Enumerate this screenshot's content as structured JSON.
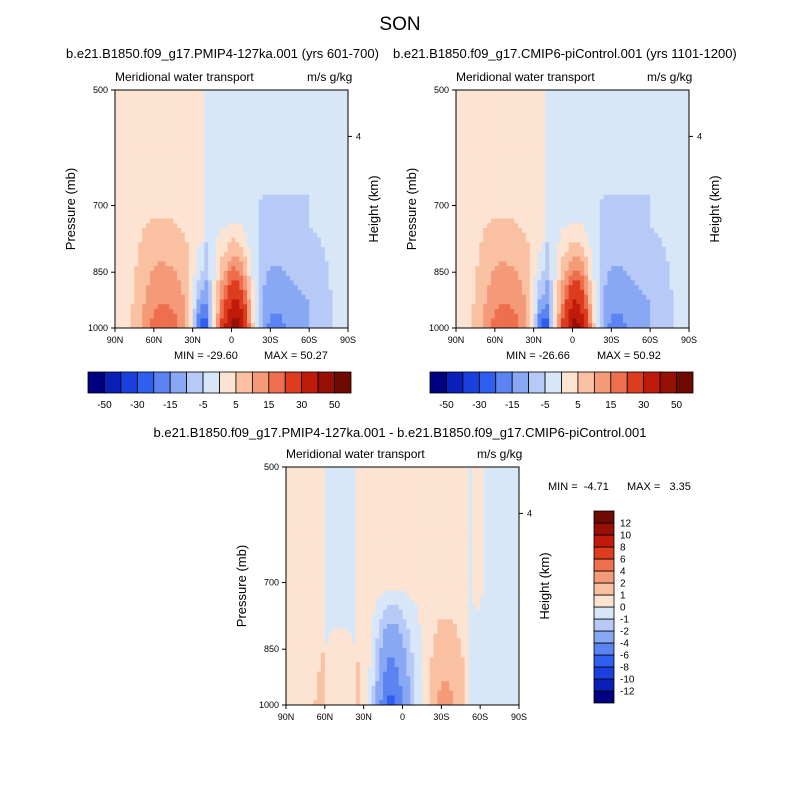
{
  "figure": {
    "season": "SON"
  },
  "chart_data": [
    {
      "type": "heatmap",
      "title": "b.e21.B1850.f09_g17.PMIP4-127ka.001 (yrs 601-700)",
      "left_label": "Meridional water transport",
      "right_label": "m/s g/kg",
      "ylabel": "Pressure (mb)",
      "ylabel_right": "Height (km)",
      "x_ticks": [
        "90N",
        "60N",
        "30N",
        "0",
        "30S",
        "60S",
        "90S"
      ],
      "y_ticks": [
        "500",
        "700",
        "850",
        "1000"
      ],
      "y_ticks_right": [
        "4"
      ],
      "xlim": [
        90,
        -90
      ],
      "ylim": [
        1000,
        500
      ],
      "min_label": "MIN = -29.60",
      "max_label": "MAX = 50.27",
      "stats": {
        "min": -29.6,
        "max": 50.27
      }
    },
    {
      "type": "heatmap",
      "title": "b.e21.B1850.f09_g17.CMIP6-piControl.001 (yrs 1101-1200)",
      "left_label": "Meridional water transport",
      "right_label": "m/s g/kg",
      "ylabel": "Pressure (mb)",
      "ylabel_right": "Height (km)",
      "x_ticks": [
        "90N",
        "60N",
        "30N",
        "0",
        "30S",
        "60S",
        "90S"
      ],
      "y_ticks": [
        "500",
        "700",
        "850",
        "1000"
      ],
      "y_ticks_right": [
        "4"
      ],
      "xlim": [
        90,
        -90
      ],
      "ylim": [
        1000,
        500
      ],
      "min_label": "MIN = -26.66",
      "max_label": "MAX = 50.92",
      "stats": {
        "min": -26.66,
        "max": 50.92
      }
    },
    {
      "type": "heatmap",
      "title": "b.e21.B1850.f09_g17.PMIP4-127ka.001 - b.e21.B1850.f09_g17.CMIP6-piControl.001",
      "left_label": "Meridional water transport",
      "right_label": "m/s g/kg",
      "ylabel": "Pressure (mb)",
      "ylabel_right": "Height (km)",
      "x_ticks": [
        "90N",
        "60N",
        "30N",
        "0",
        "30S",
        "60S",
        "90S"
      ],
      "y_ticks": [
        "500",
        "700",
        "850",
        "1000"
      ],
      "y_ticks_right": [
        "4"
      ],
      "xlim": [
        90,
        -90
      ],
      "ylim": [
        1000,
        500
      ],
      "min_label": "MIN =  -4.71",
      "max_label": "MAX =   3.35",
      "stats": {
        "min": -4.71,
        "max": 3.35
      }
    }
  ],
  "colorbars": {
    "main": {
      "orientation": "horizontal",
      "levels": [
        -50,
        -40,
        -30,
        -20,
        -15,
        -10,
        -5,
        0,
        5,
        10,
        15,
        20,
        30,
        40,
        50
      ],
      "labels": [
        "-50",
        "-30",
        "-15",
        "-5",
        "5",
        "15",
        "30",
        "50"
      ],
      "colors": [
        "#000080",
        "#0a1fb8",
        "#1a40e0",
        "#2f5fef",
        "#5b84f2",
        "#89a8f4",
        "#b6c9f7",
        "#d8e7f7",
        "#fde3d2",
        "#f9c0a2",
        "#f59a78",
        "#ee6f4d",
        "#dd3c1f",
        "#c01a0a",
        "#961006",
        "#6e0a00"
      ]
    },
    "diff": {
      "orientation": "vertical",
      "levels": [
        -12,
        -10,
        -8,
        -6,
        -4,
        -2,
        -1,
        0,
        1,
        2,
        4,
        6,
        8,
        10,
        12
      ],
      "labels": [
        "-12",
        "-10",
        "-8",
        "-6",
        "-4",
        "-2",
        "-1",
        "0",
        "1",
        "2",
        "4",
        "6",
        "8",
        "10",
        "12"
      ],
      "colors": [
        "#000080",
        "#0a1fb8",
        "#1a40e0",
        "#2f5fef",
        "#5b84f2",
        "#89a8f4",
        "#b6c9f7",
        "#d8e7f7",
        "#fde3d2",
        "#f9c0a2",
        "#f59a78",
        "#ee6f4d",
        "#dd3c1f",
        "#c01a0a",
        "#961006",
        "#6e0a00"
      ]
    }
  }
}
